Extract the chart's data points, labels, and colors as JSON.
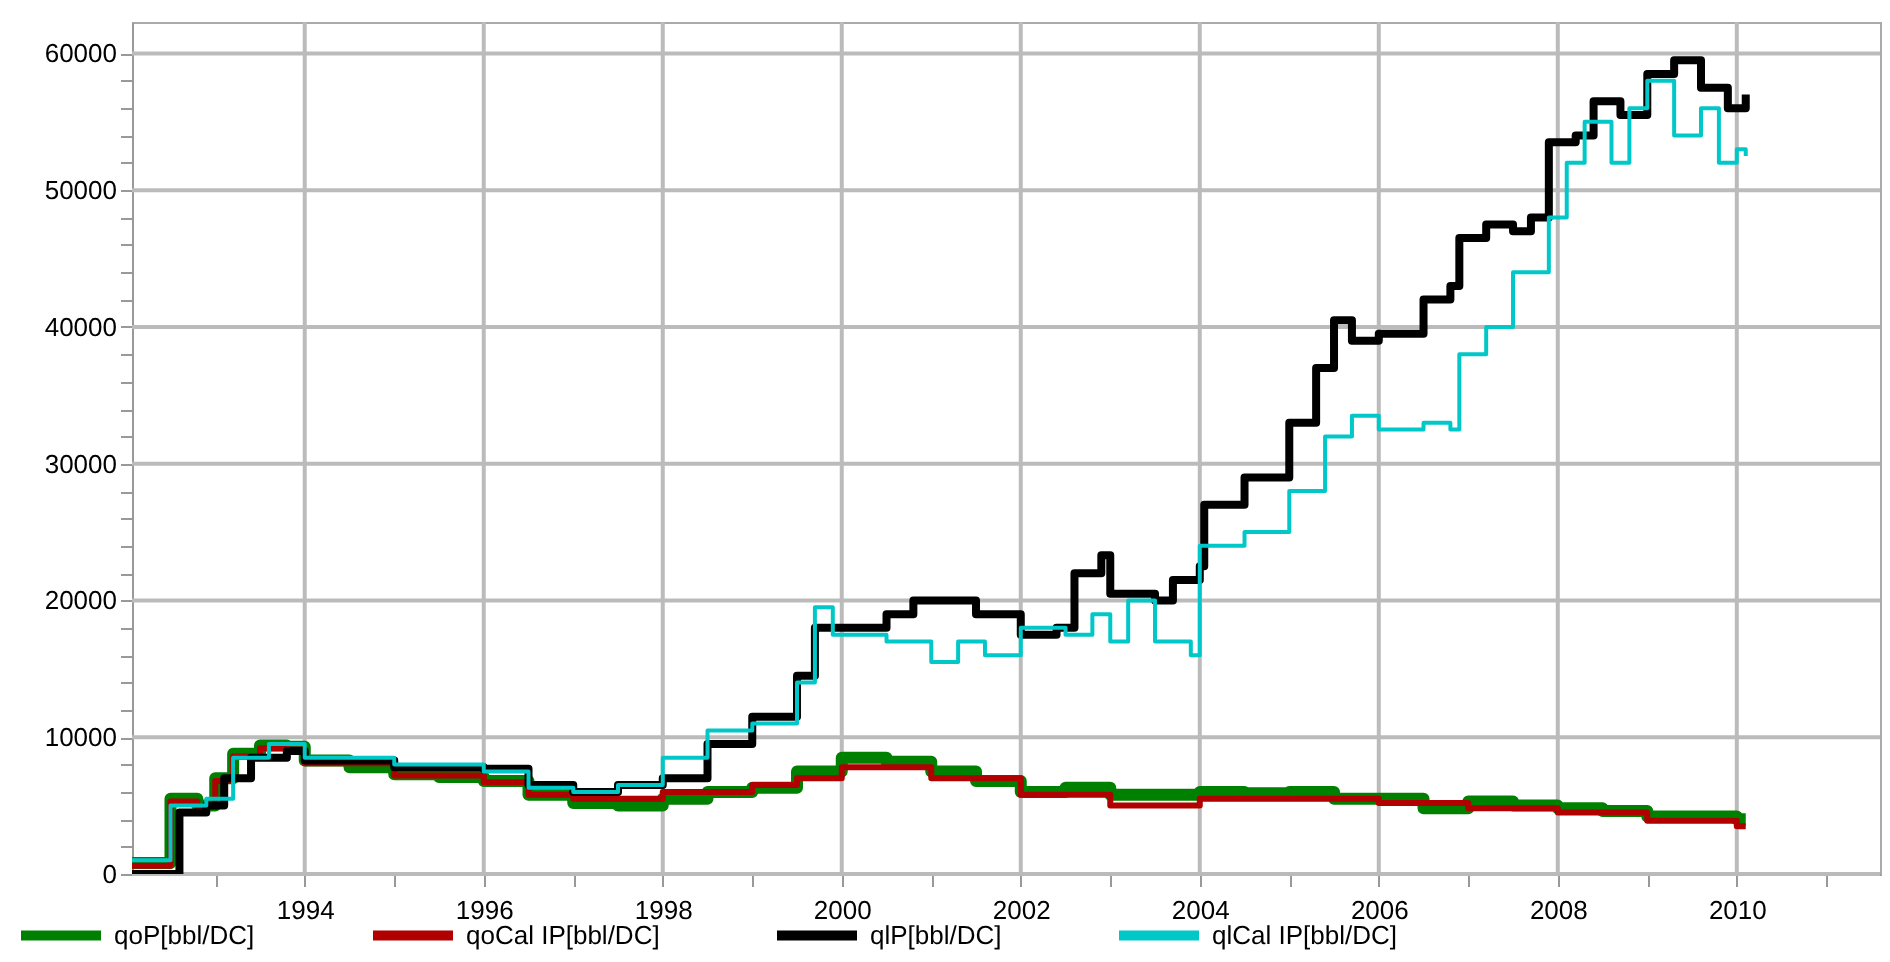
{
  "chart_data": {
    "type": "step",
    "xlim": [
      1992.07,
      2011.6
    ],
    "ylim": [
      0,
      62300
    ],
    "xticks": [
      {
        "value": 1993,
        "label": null
      },
      1994,
      {
        "value": 1995,
        "label": null
      },
      1996,
      {
        "value": 1997,
        "label": null
      },
      1998,
      {
        "value": 1999,
        "label": null
      },
      2000,
      {
        "value": 2001,
        "label": null
      },
      2002,
      {
        "value": 2003,
        "label": null
      },
      2004,
      {
        "value": 2005,
        "label": null
      },
      2006,
      {
        "value": 2007,
        "label": null
      },
      2008,
      {
        "value": 2009,
        "label": null
      },
      2010,
      {
        "value": 2011,
        "label": null
      }
    ],
    "yticks": [
      0,
      {
        "value": 2000,
        "label": null
      },
      {
        "value": 4000,
        "label": null
      },
      {
        "value": 6000,
        "label": null
      },
      {
        "value": 8000,
        "label": null
      },
      10000,
      {
        "value": 12000,
        "label": null
      },
      {
        "value": 14000,
        "label": null
      },
      {
        "value": 16000,
        "label": null
      },
      {
        "value": 18000,
        "label": null
      },
      20000,
      {
        "value": 22000,
        "label": null
      },
      {
        "value": 24000,
        "label": null
      },
      {
        "value": 26000,
        "label": null
      },
      {
        "value": 28000,
        "label": null
      },
      30000,
      {
        "value": 32000,
        "label": null
      },
      {
        "value": 34000,
        "label": null
      },
      {
        "value": 36000,
        "label": null
      },
      {
        "value": 38000,
        "label": null
      },
      40000,
      {
        "value": 42000,
        "label": null
      },
      {
        "value": 44000,
        "label": null
      },
      {
        "value": 46000,
        "label": null
      },
      {
        "value": 48000,
        "label": null
      },
      50000,
      {
        "value": 52000,
        "label": null
      },
      {
        "value": 54000,
        "label": null
      },
      {
        "value": 56000,
        "label": null
      },
      {
        "value": 58000,
        "label": null
      },
      60000
    ],
    "grid": true,
    "legend": "bottom",
    "series": [
      {
        "name": "qoP[bbl/DC]",
        "color": "#008000",
        "x": [
          1992.07,
          1992.5,
          1992.8,
          1993.0,
          1993.2,
          1993.5,
          1993.8,
          1994.0,
          1994.5,
          1995.0,
          1995.5,
          1996.0,
          1996.5,
          1997.0,
          1997.5,
          1998.0,
          1998.5,
          1999.0,
          1999.5,
          2000.0,
          2000.5,
          2001.0,
          2001.5,
          2002.0,
          2002.5,
          2003.0,
          2003.5,
          2004.0,
          2004.5,
          2005.0,
          2005.5,
          2006.0,
          2006.5,
          2007.0,
          2007.5,
          2008.0,
          2008.5,
          2009.0,
          2009.5,
          2010.0,
          2010.1
        ],
        "values": [
          800,
          5500,
          5000,
          7000,
          8800,
          9400,
          9300,
          8300,
          7800,
          7300,
          7100,
          6800,
          5800,
          5200,
          5000,
          5500,
          6000,
          6300,
          7500,
          8500,
          8200,
          7500,
          6800,
          6000,
          6300,
          5800,
          5800,
          6000,
          5900,
          6000,
          5500,
          5500,
          4800,
          5300,
          5000,
          4800,
          4600,
          4200,
          4200,
          4000,
          4000
        ]
      },
      {
        "name": "qoCal IP[bbl/DC]",
        "color": "#b00000",
        "x": [
          1992.07,
          1992.5,
          1992.8,
          1993.0,
          1993.2,
          1993.5,
          1993.8,
          1994.0,
          1995.0,
          1996.0,
          1996.5,
          1997.0,
          1998.0,
          1999.0,
          1999.5,
          2000.0,
          2001.0,
          2002.0,
          2003.0,
          2003.5,
          2004.0,
          2005.0,
          2006.0,
          2007.0,
          2008.0,
          2009.0,
          2010.0,
          2010.1
        ],
        "values": [
          600,
          5300,
          4900,
          6800,
          8600,
          9200,
          9100,
          8100,
          7200,
          6700,
          5800,
          5500,
          6000,
          6500,
          7000,
          7800,
          7000,
          5800,
          5000,
          5000,
          5500,
          5500,
          5200,
          4800,
          4500,
          3900,
          3500,
          3500
        ]
      },
      {
        "name": "qlP[bbl/DC]",
        "color": "#000000",
        "x": [
          1992.07,
          1992.6,
          1992.9,
          1993.1,
          1993.4,
          1993.8,
          1994.0,
          1995.0,
          1995.5,
          1996.0,
          1996.5,
          1997.0,
          1997.5,
          1998.0,
          1998.5,
          1999.0,
          1999.5,
          1999.7,
          2000.0,
          2000.5,
          2000.8,
          2001.5,
          2002.0,
          2002.4,
          2002.6,
          2002.9,
          2003.0,
          2003.5,
          2003.7,
          2004.0,
          2004.05,
          2004.5,
          2005.0,
          2005.3,
          2005.5,
          2005.7,
          2006.0,
          2006.5,
          2006.8,
          2006.9,
          2007.2,
          2007.5,
          2007.7,
          2007.9,
          2008.2,
          2008.4,
          2008.7,
          2009.0,
          2009.3,
          2009.6,
          2009.9,
          2010.1
        ],
        "values": [
          0,
          4500,
          5000,
          7000,
          8500,
          9000,
          8300,
          7800,
          7800,
          7700,
          6500,
          6000,
          6500,
          7000,
          9500,
          11500,
          14500,
          18000,
          18000,
          19000,
          20000,
          19000,
          17500,
          18000,
          22000,
          23300,
          20500,
          20000,
          21500,
          22500,
          27000,
          29000,
          33000,
          37000,
          40500,
          39000,
          39500,
          42000,
          43000,
          46500,
          47500,
          47000,
          48000,
          53500,
          54000,
          56500,
          55500,
          58500,
          59500,
          57500,
          56000,
          57000
        ]
      },
      {
        "name": "qlCal IP[bbl/DC]",
        "color": "#00c8c8",
        "x": [
          1992.07,
          1992.5,
          1992.9,
          1993.2,
          1993.6,
          1994.0,
          1995.0,
          1996.0,
          1996.5,
          1997.0,
          1997.5,
          1998.0,
          1998.5,
          1999.0,
          1999.5,
          1999.7,
          1999.9,
          2000.5,
          2001.0,
          2001.3,
          2001.6,
          2002.0,
          2002.5,
          2002.8,
          2003.0,
          2003.2,
          2003.5,
          2003.9,
          2004.0,
          2004.5,
          2005.0,
          2005.4,
          2005.7,
          2006.0,
          2006.5,
          2006.8,
          2006.9,
          2007.2,
          2007.5,
          2007.9,
          2008.1,
          2008.3,
          2008.6,
          2008.8,
          2009.0,
          2009.3,
          2009.6,
          2009.8,
          2010.0,
          2010.1
        ],
        "values": [
          1000,
          5000,
          5500,
          8500,
          9500,
          8500,
          8000,
          7500,
          6300,
          6000,
          6500,
          8500,
          10500,
          11000,
          14000,
          19500,
          17500,
          17000,
          15500,
          17000,
          16000,
          18000,
          17500,
          19000,
          17000,
          20000,
          17000,
          16000,
          24000,
          25000,
          28000,
          32000,
          33500,
          32500,
          33000,
          32500,
          38000,
          40000,
          44000,
          48000,
          52000,
          55000,
          52000,
          56000,
          58000,
          54000,
          56000,
          52000,
          53000,
          52500
        ]
      }
    ]
  }
}
